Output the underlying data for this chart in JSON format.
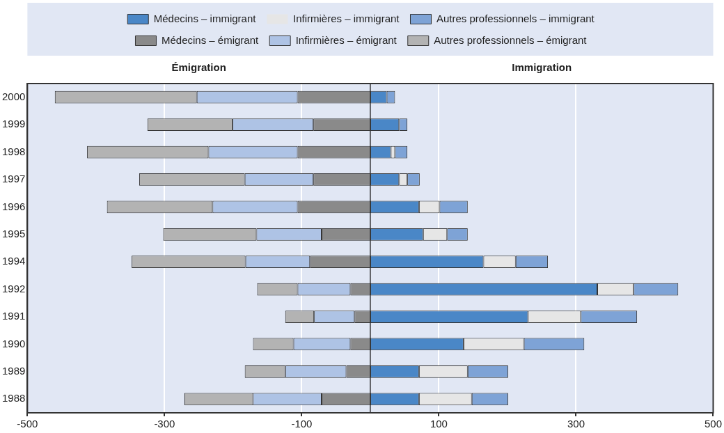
{
  "chart_data": {
    "type": "bar",
    "orientation": "horizontal",
    "stacked": true,
    "categories": [
      "2000",
      "1999",
      "1998",
      "1997",
      "1996",
      "1995",
      "1994",
      "1992",
      "1991",
      "1990",
      "1989",
      "1988"
    ],
    "series": [
      {
        "name": "Médecins – immigrant",
        "color": "#4a87c7",
        "values": [
          24,
          42,
          30,
          42,
          71,
          77,
          165,
          331,
          230,
          136,
          71,
          71
        ]
      },
      {
        "name": "Infirmières – immigrant",
        "color": "#e6e6e6",
        "values": [
          0,
          0,
          6,
          12,
          30,
          35,
          47,
          53,
          77,
          88,
          71,
          77
        ]
      },
      {
        "name": "Autres professionnels – immigrant",
        "color": "#7ea3d6",
        "values": [
          12,
          12,
          18,
          18,
          41,
          30,
          47,
          65,
          82,
          88,
          59,
          53
        ]
      },
      {
        "name": "Médecins – émigrant",
        "color": "#8a8a8a",
        "values": [
          -106,
          -83,
          -106,
          -83,
          -106,
          -71,
          -88,
          -29,
          -23,
          -29,
          -35,
          -71
        ]
      },
      {
        "name": "Infirmières – émigrant",
        "color": "#aec3e5",
        "values": [
          -147,
          -118,
          -130,
          -100,
          -124,
          -95,
          -94,
          -77,
          -59,
          -83,
          -89,
          -100
        ]
      },
      {
        "name": "Autres professionnels – émigrant",
        "color": "#b3b3b3",
        "values": [
          -207,
          -124,
          -177,
          -154,
          -154,
          -136,
          -166,
          -59,
          -42,
          -59,
          -59,
          -100
        ]
      }
    ],
    "xlim": [
      -500,
      500
    ],
    "xticks": [
      -500,
      -300,
      -100,
      100,
      300,
      500
    ],
    "grid": "x",
    "legend": "top",
    "ref_lines": [
      {
        "axis": "x",
        "value": 0,
        "color": "#333333"
      }
    ],
    "annotations": [
      "Émigration",
      "Immigration"
    ]
  }
}
